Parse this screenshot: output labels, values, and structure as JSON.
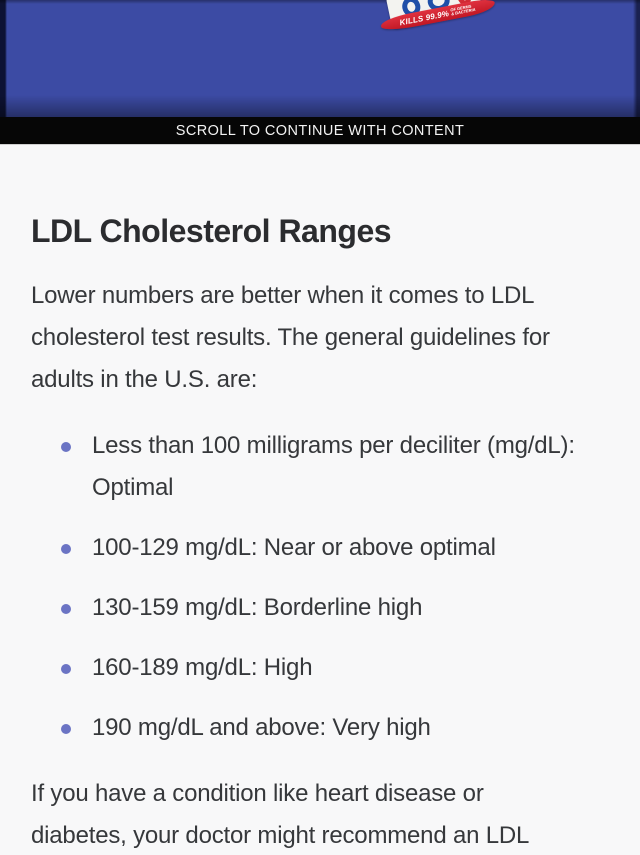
{
  "ad": {
    "logo": {
      "kill_claim": "KILLS 99.9%",
      "kill_claim_sub": "OF GERMS\n& BACTERIA"
    },
    "colors": {
      "banner_blue": "#3c4ba4",
      "edge_navy": "#0d1233",
      "ribbon_red": "#c11724"
    }
  },
  "scroll_bar": {
    "label": "SCROLL TO CONTINUE WITH CONTENT"
  },
  "article": {
    "heading": "LDL Cholesterol Ranges",
    "intro": "Lower numbers are better when it comes to LDL\ncholesterol test results. The general guidelines for\nadults in the U.S. are:",
    "ranges": [
      "Less than 100 milligrams per deciliter (mg/dL):\nOptimal",
      "100-129 mg/dL: Near or above optimal",
      "130-159 mg/dL: Borderline high",
      "160-189 mg/dL: High",
      "190 mg/dL and above: Very high"
    ],
    "outro": "If you have a condition like heart disease or\ndiabetes, your doctor might recommend an LDL",
    "colors": {
      "bullet_accent": "#6b74c4",
      "background": "#f8f8f9",
      "text": "#36383b"
    }
  }
}
